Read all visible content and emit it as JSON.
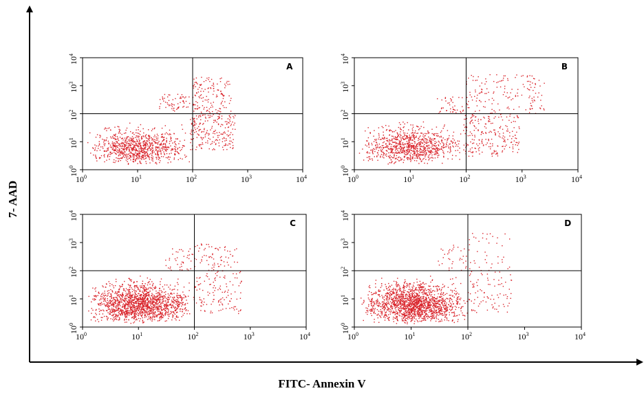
{
  "chart_data": [
    {
      "type": "scatter",
      "panel_label": "A",
      "x_scale": "log",
      "y_scale": "log",
      "xlim": [
        1,
        10000
      ],
      "ylim": [
        1,
        10000
      ],
      "x_ticks": [
        "10",
        "10",
        "10",
        "10",
        "10"
      ],
      "x_tick_exponents": [
        "0",
        "1",
        "2",
        "3",
        "4"
      ],
      "y_ticks": [
        "10",
        "10",
        "10",
        "10",
        "10"
      ],
      "y_tick_exponents": [
        "0",
        "1",
        "2",
        "3",
        "4"
      ],
      "quadrant_gates": {
        "x": 100,
        "y": 100
      },
      "point_color": "#d9232a",
      "clusters": [
        {
          "x_range": [
            1.2,
            90
          ],
          "y_range": [
            1.5,
            60
          ],
          "n": 900
        },
        {
          "x_range": [
            90,
            600
          ],
          "y_range": [
            5,
            100
          ],
          "n": 220
        },
        {
          "x_range": [
            100,
            500
          ],
          "y_range": [
            100,
            2000
          ],
          "n": 140
        },
        {
          "x_range": [
            25,
            90
          ],
          "y_range": [
            120,
            500
          ],
          "n": 60
        }
      ]
    },
    {
      "type": "scatter",
      "panel_label": "B",
      "x_scale": "log",
      "y_scale": "log",
      "xlim": [
        1,
        10000
      ],
      "ylim": [
        1,
        10000
      ],
      "x_ticks": [
        "10",
        "10",
        "10",
        "10",
        "10"
      ],
      "x_tick_exponents": [
        "0",
        "1",
        "2",
        "3",
        "4"
      ],
      "y_ticks": [
        "10",
        "10",
        "10",
        "10",
        "10"
      ],
      "y_tick_exponents": [
        "0",
        "1",
        "2",
        "3",
        "4"
      ],
      "quadrant_gates": {
        "x": 100,
        "y": 100
      },
      "point_color": "#d9232a",
      "clusters": [
        {
          "x_range": [
            1.2,
            90
          ],
          "y_range": [
            1.5,
            70
          ],
          "n": 900
        },
        {
          "x_range": [
            90,
            900
          ],
          "y_range": [
            3,
            100
          ],
          "n": 230
        },
        {
          "x_range": [
            100,
            2500
          ],
          "y_range": [
            100,
            2500
          ],
          "n": 160
        },
        {
          "x_range": [
            30,
            90
          ],
          "y_range": [
            100,
            400
          ],
          "n": 40
        }
      ]
    },
    {
      "type": "scatter",
      "panel_label": "C",
      "x_scale": "log",
      "y_scale": "log",
      "xlim": [
        1,
        10000
      ],
      "ylim": [
        1,
        10000
      ],
      "x_ticks": [
        "10",
        "10",
        "10",
        "10",
        "10"
      ],
      "x_tick_exponents": [
        "0",
        "1",
        "2",
        "3",
        "4"
      ],
      "y_ticks": [
        "10",
        "10",
        "10",
        "10",
        "10"
      ],
      "y_tick_exponents": [
        "0",
        "1",
        "2",
        "3",
        "4"
      ],
      "quadrant_gates": {
        "x": 100,
        "y": 100
      },
      "point_color": "#d9232a",
      "clusters": [
        {
          "x_range": [
            1.2,
            95
          ],
          "y_range": [
            1.3,
            80
          ],
          "n": 1600
        },
        {
          "x_range": [
            95,
            700
          ],
          "y_range": [
            3,
            100
          ],
          "n": 130
        },
        {
          "x_range": [
            100,
            600
          ],
          "y_range": [
            100,
            900
          ],
          "n": 70
        },
        {
          "x_range": [
            30,
            95
          ],
          "y_range": [
            100,
            600
          ],
          "n": 40
        }
      ]
    },
    {
      "type": "scatter",
      "panel_label": "D",
      "x_scale": "log",
      "y_scale": "log",
      "xlim": [
        1,
        10000
      ],
      "ylim": [
        1,
        10000
      ],
      "x_ticks": [
        "10",
        "10",
        "10",
        "10",
        "10"
      ],
      "x_tick_exponents": [
        "0",
        "1",
        "2",
        "3",
        "4"
      ],
      "y_ticks": [
        "10",
        "10",
        "10",
        "10",
        "10"
      ],
      "y_tick_exponents": [
        "0",
        "1",
        "2",
        "3",
        "4"
      ],
      "quadrant_gates": {
        "x": 100,
        "y": 100
      },
      "point_color": "#d9232a",
      "clusters": [
        {
          "x_range": [
            1.3,
            95
          ],
          "y_range": [
            1.3,
            80
          ],
          "n": 1700
        },
        {
          "x_range": [
            95,
            600
          ],
          "y_range": [
            3,
            100
          ],
          "n": 90
        },
        {
          "x_range": [
            100,
            600
          ],
          "y_range": [
            100,
            2500
          ],
          "n": 40
        },
        {
          "x_range": [
            30,
            95
          ],
          "y_range": [
            100,
            800
          ],
          "n": 35
        }
      ]
    }
  ],
  "figure": {
    "xlabel": "FITC- Annexin V",
    "ylabel": "7- AAD",
    "axis_color": "#000000"
  }
}
